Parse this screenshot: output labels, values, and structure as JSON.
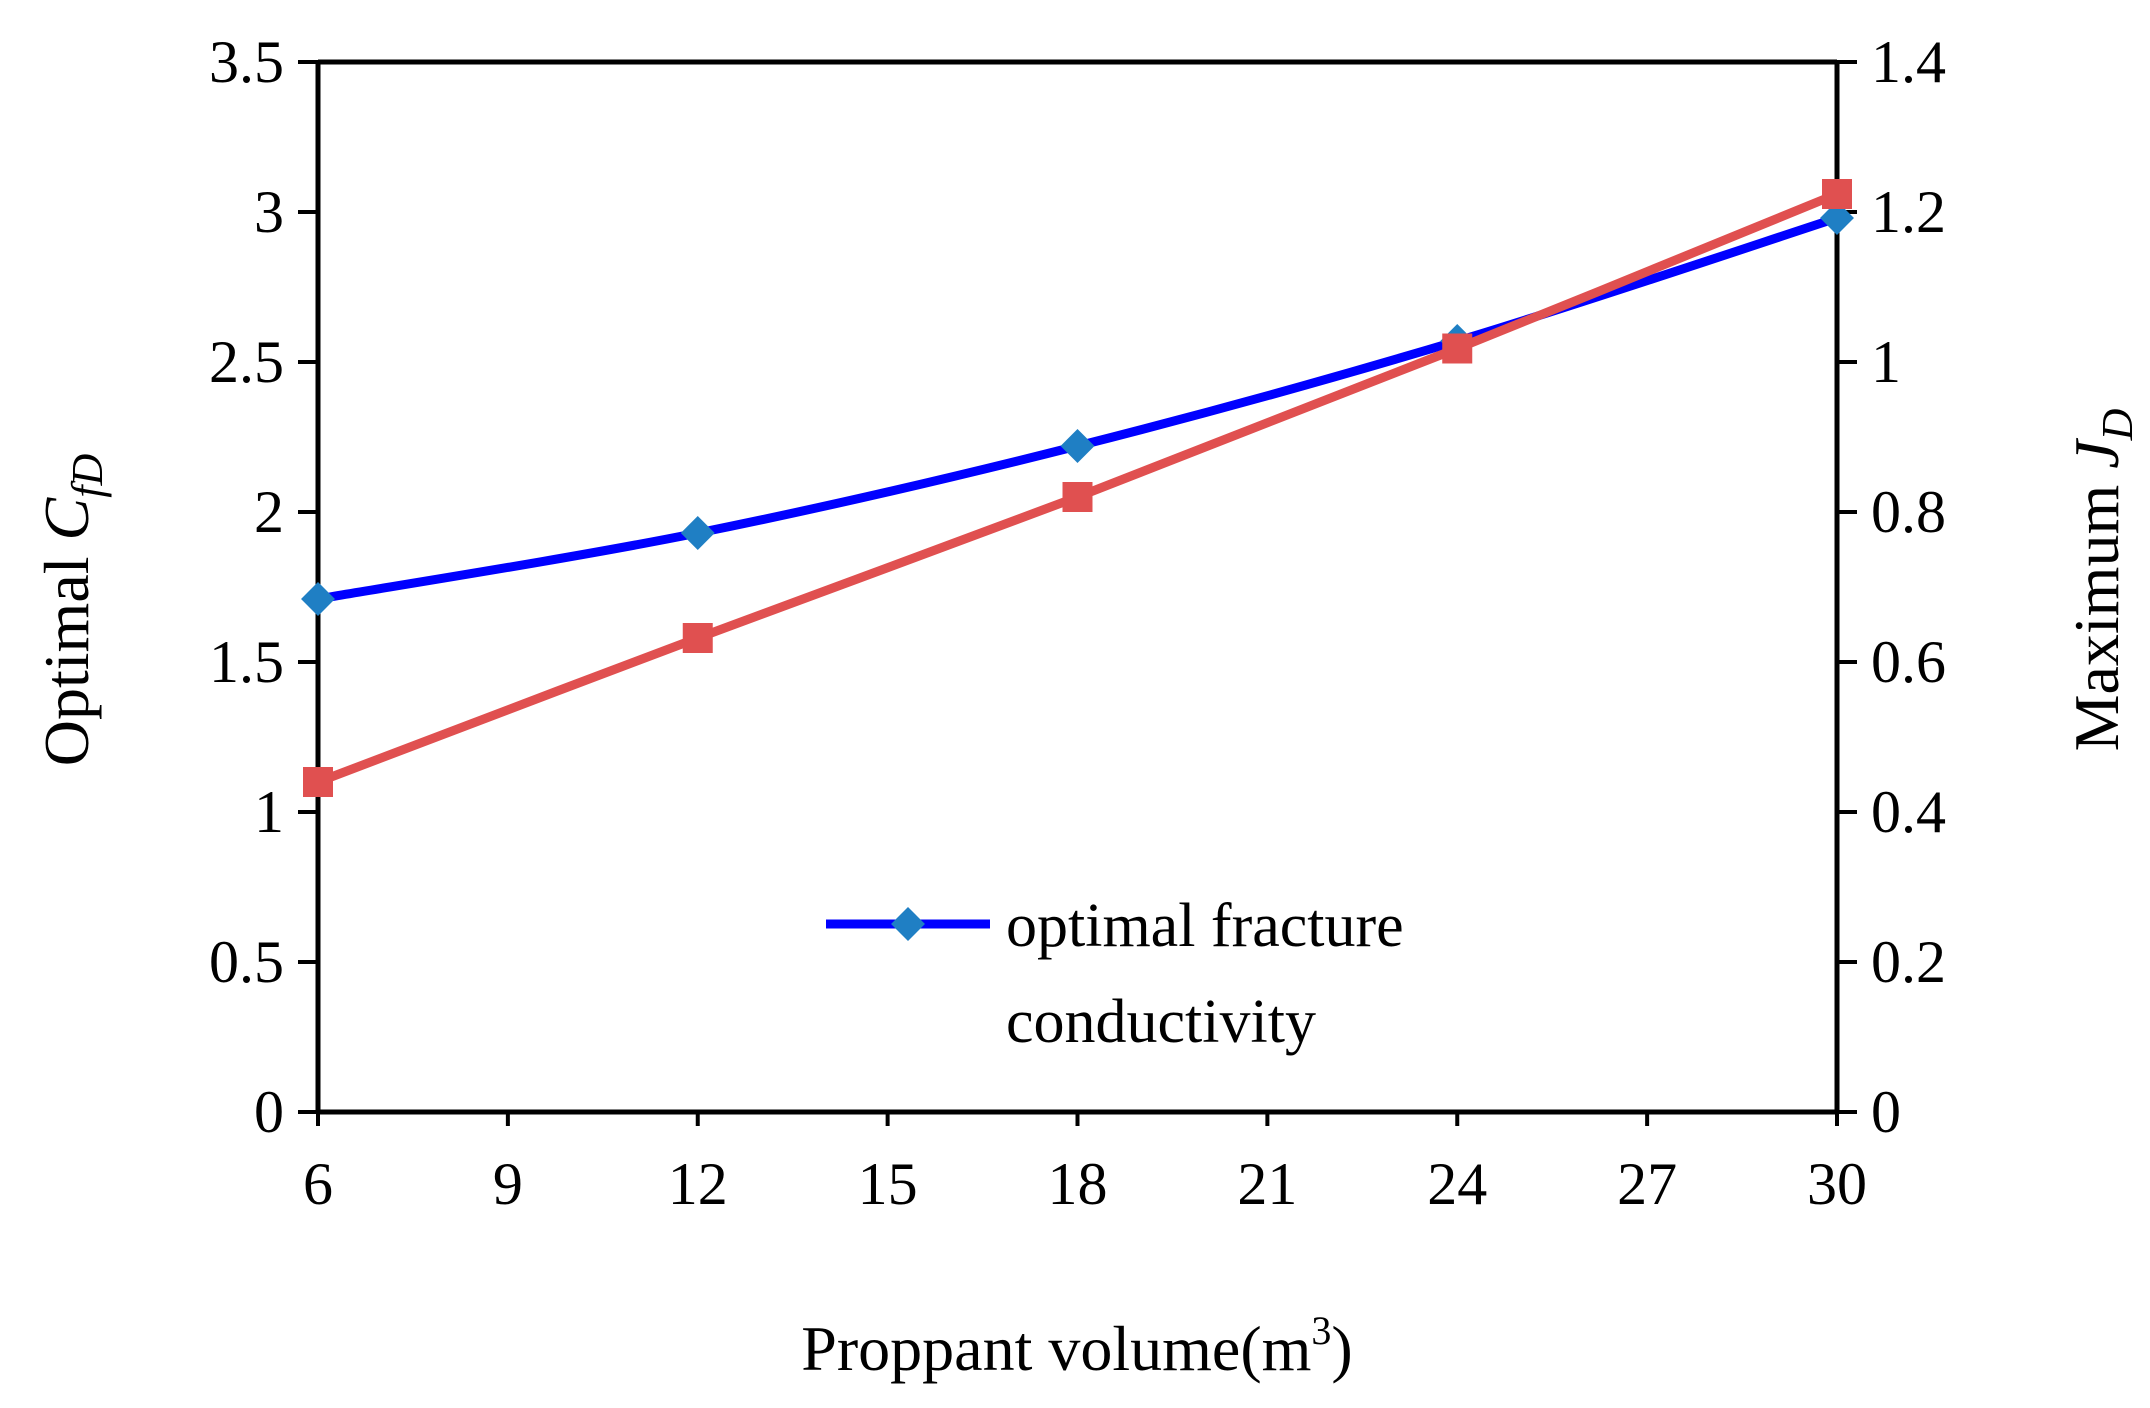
{
  "chart_data": {
    "type": "line",
    "title": "",
    "xlabel": "Proppant volume(m",
    "xlabel_superscript": "3",
    "xlabel_suffix": ")",
    "ylabel_left": "Optimal ",
    "ylabel_left_symbol": "C",
    "ylabel_left_subscript": "fD",
    "ylabel_right": "Maximum ",
    "ylabel_right_symbol": "J",
    "ylabel_right_subscript": "D",
    "x_ticks": [
      "6",
      "9",
      "12",
      "15",
      "18",
      "21",
      "24",
      "27",
      "30"
    ],
    "xlim": [
      6,
      30
    ],
    "y_left_ticks": [
      "0",
      "0.5",
      "1",
      "1.5",
      "2",
      "2.5",
      "3",
      "3.5"
    ],
    "ylim_left": [
      0,
      3.5
    ],
    "y_right_ticks": [
      "0",
      "0.2",
      "0.4",
      "0.6",
      "0.8",
      "1",
      "1.2",
      "1.4"
    ],
    "ylim_right": [
      0,
      1.4
    ],
    "grid": false,
    "legend": {
      "position": "bottom-center",
      "label_line1": "optimal fracture",
      "label_line2": "conductivity"
    },
    "series": [
      {
        "name": "optimal fracture conductivity",
        "axis": "left",
        "color": "#0000ff",
        "marker": "diamond",
        "marker_color": "#1f7fc4",
        "x": [
          6,
          12,
          18,
          24,
          30
        ],
        "values": [
          1.71,
          1.93,
          2.22,
          2.57,
          2.98
        ]
      },
      {
        "name": "maximum JD",
        "axis": "right",
        "color": "#e05050",
        "marker": "square",
        "marker_color": "#e05050",
        "x": [
          6,
          12,
          18,
          24,
          30
        ],
        "values": [
          0.44,
          0.632,
          0.82,
          1.018,
          1.224
        ]
      }
    ]
  }
}
